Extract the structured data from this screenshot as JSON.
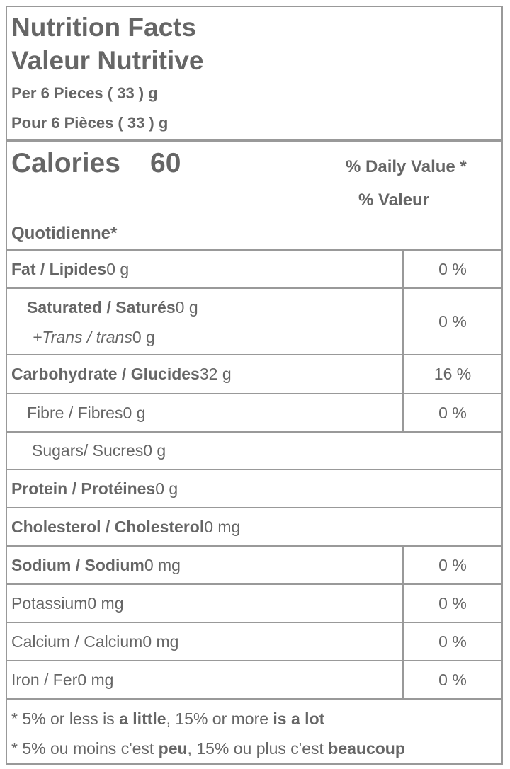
{
  "header": {
    "title": "Nutrition Facts",
    "title_fr": "Valeur Nutritive",
    "serving": "Per 6 Pieces ( 33 ) g",
    "serving_fr": "Pour 6 Pièces ( 33 ) g"
  },
  "calories": {
    "label": "Calories",
    "value": "60",
    "daily_value": "% Daily Value *",
    "daily_value_fr_1": "% Valeur",
    "daily_value_fr_2": "Quotidienne*"
  },
  "rows": [
    {
      "label": "Fat / Lipides",
      "amount": "0 g",
      "daily_value": "0 %"
    },
    {
      "label": "Saturated / Saturés",
      "amount": "0 g",
      "sub_label": "+Trans / trans",
      "sub_amount": "0 g",
      "daily_value": "0 %"
    },
    {
      "label": "Carbohydrate / Glucides",
      "amount": "32 g",
      "daily_value": "16 %"
    },
    {
      "label": "Fibre / Fibres",
      "amount": "0 g",
      "daily_value": "0 %"
    },
    {
      "label": "Sugars/ Sucres",
      "amount": "0 g"
    },
    {
      "label": "Protein / Protéines",
      "amount": "0 g"
    },
    {
      "label": "Cholesterol / Cholesterol",
      "amount": "0 mg"
    },
    {
      "label": "Sodium / Sodium",
      "amount": "0 mg",
      "daily_value": "0 %"
    },
    {
      "label": "Potassium",
      "amount": "0 mg",
      "daily_value": "0 %"
    },
    {
      "label": "Calcium / Calcium",
      "amount": "0 mg",
      "daily_value": "0 %"
    },
    {
      "label": "Iron / Fer",
      "amount": "0 mg",
      "daily_value": "0 %"
    }
  ],
  "footnote": [
    [
      "* 5% or less is ",
      "a little",
      ", 15% or more ",
      "is a lot"
    ],
    [
      "* 5% ou moins c'est ",
      "peu",
      ", 15% ou plus c'est ",
      "beaucoup"
    ]
  ]
}
